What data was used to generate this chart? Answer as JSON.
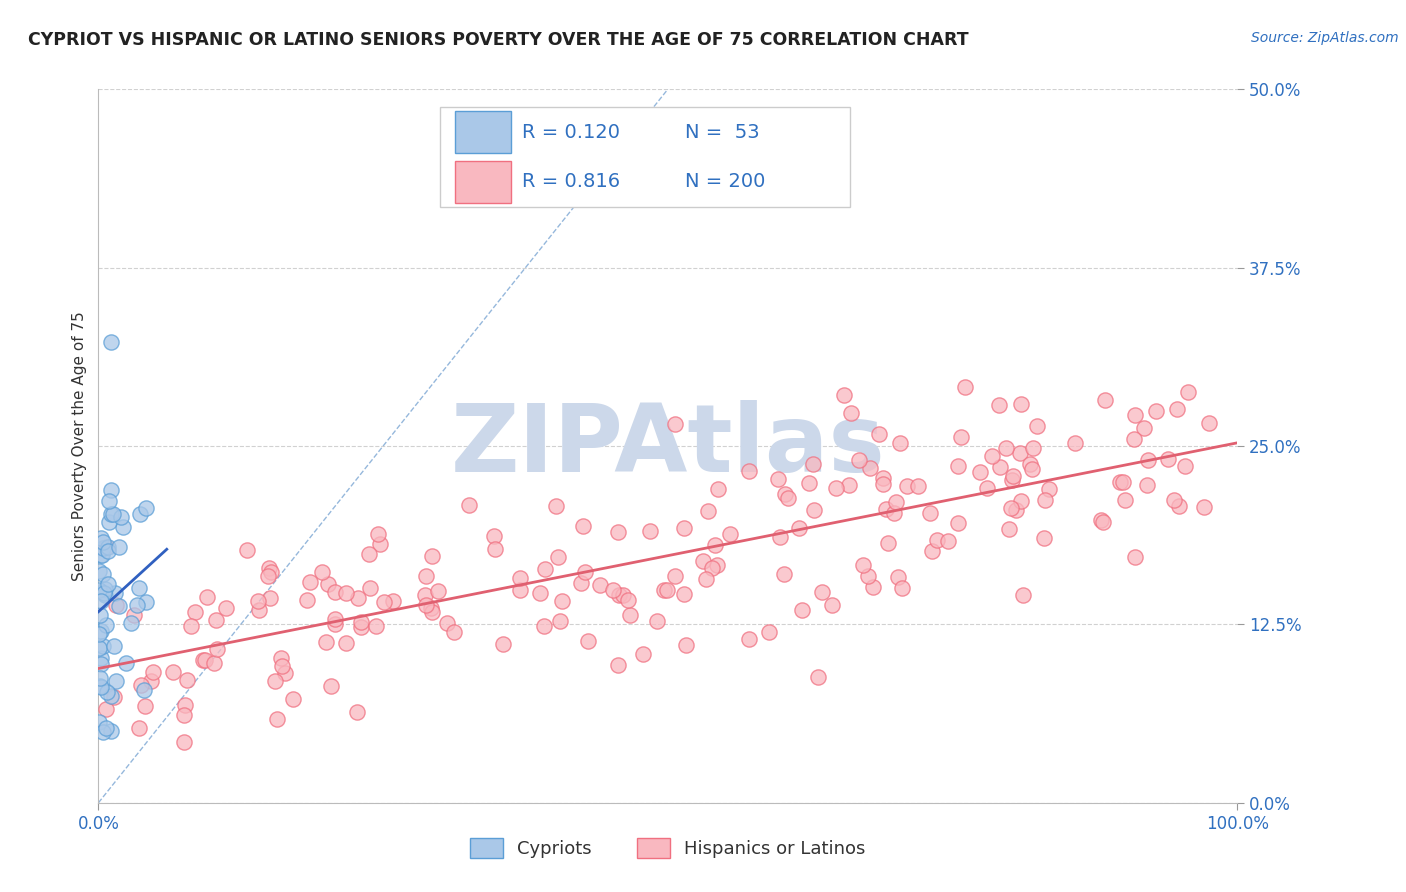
{
  "title": "CYPRIOT VS HISPANIC OR LATINO SENIORS POVERTY OVER THE AGE OF 75 CORRELATION CHART",
  "source_text": "Source: ZipAtlas.com",
  "ylabel": "Seniors Poverty Over the Age of 75",
  "xlim": [
    0.0,
    1.0
  ],
  "ylim": [
    0.0,
    0.5
  ],
  "yticks": [
    0.0,
    0.125,
    0.25,
    0.375,
    0.5
  ],
  "ytick_labels": [
    "0.0%",
    "12.5%",
    "25.0%",
    "37.5%",
    "50.0%"
  ],
  "xticks": [
    0.0,
    1.0
  ],
  "xtick_labels": [
    "0.0%",
    "100.0%"
  ],
  "legend_R1": "0.120",
  "legend_N1": "53",
  "legend_R2": "0.816",
  "legend_N2": "200",
  "cypriot_color": "#aac8e8",
  "hispanic_color": "#f9b8c0",
  "cypriot_edge": "#5b9ed6",
  "hispanic_edge": "#f07080",
  "cypriot_line_color": "#3060c0",
  "hispanic_line_color": "#e06070",
  "ref_line_color": "#8ab0d8",
  "title_color": "#222222",
  "axis_label_color": "#333333",
  "tick_color": "#3070c0",
  "legend_text_color": "#3070c0",
  "background_color": "#ffffff",
  "watermark_color": "#ccd8ea",
  "watermark_text": "ZIPAtlas",
  "title_fontsize": 12.5,
  "source_fontsize": 10,
  "axis_label_fontsize": 11,
  "tick_fontsize": 12,
  "legend_fontsize": 14,
  "watermark_fontsize": 68,
  "cypriot_seed": 42,
  "hispanic_seed": 99
}
